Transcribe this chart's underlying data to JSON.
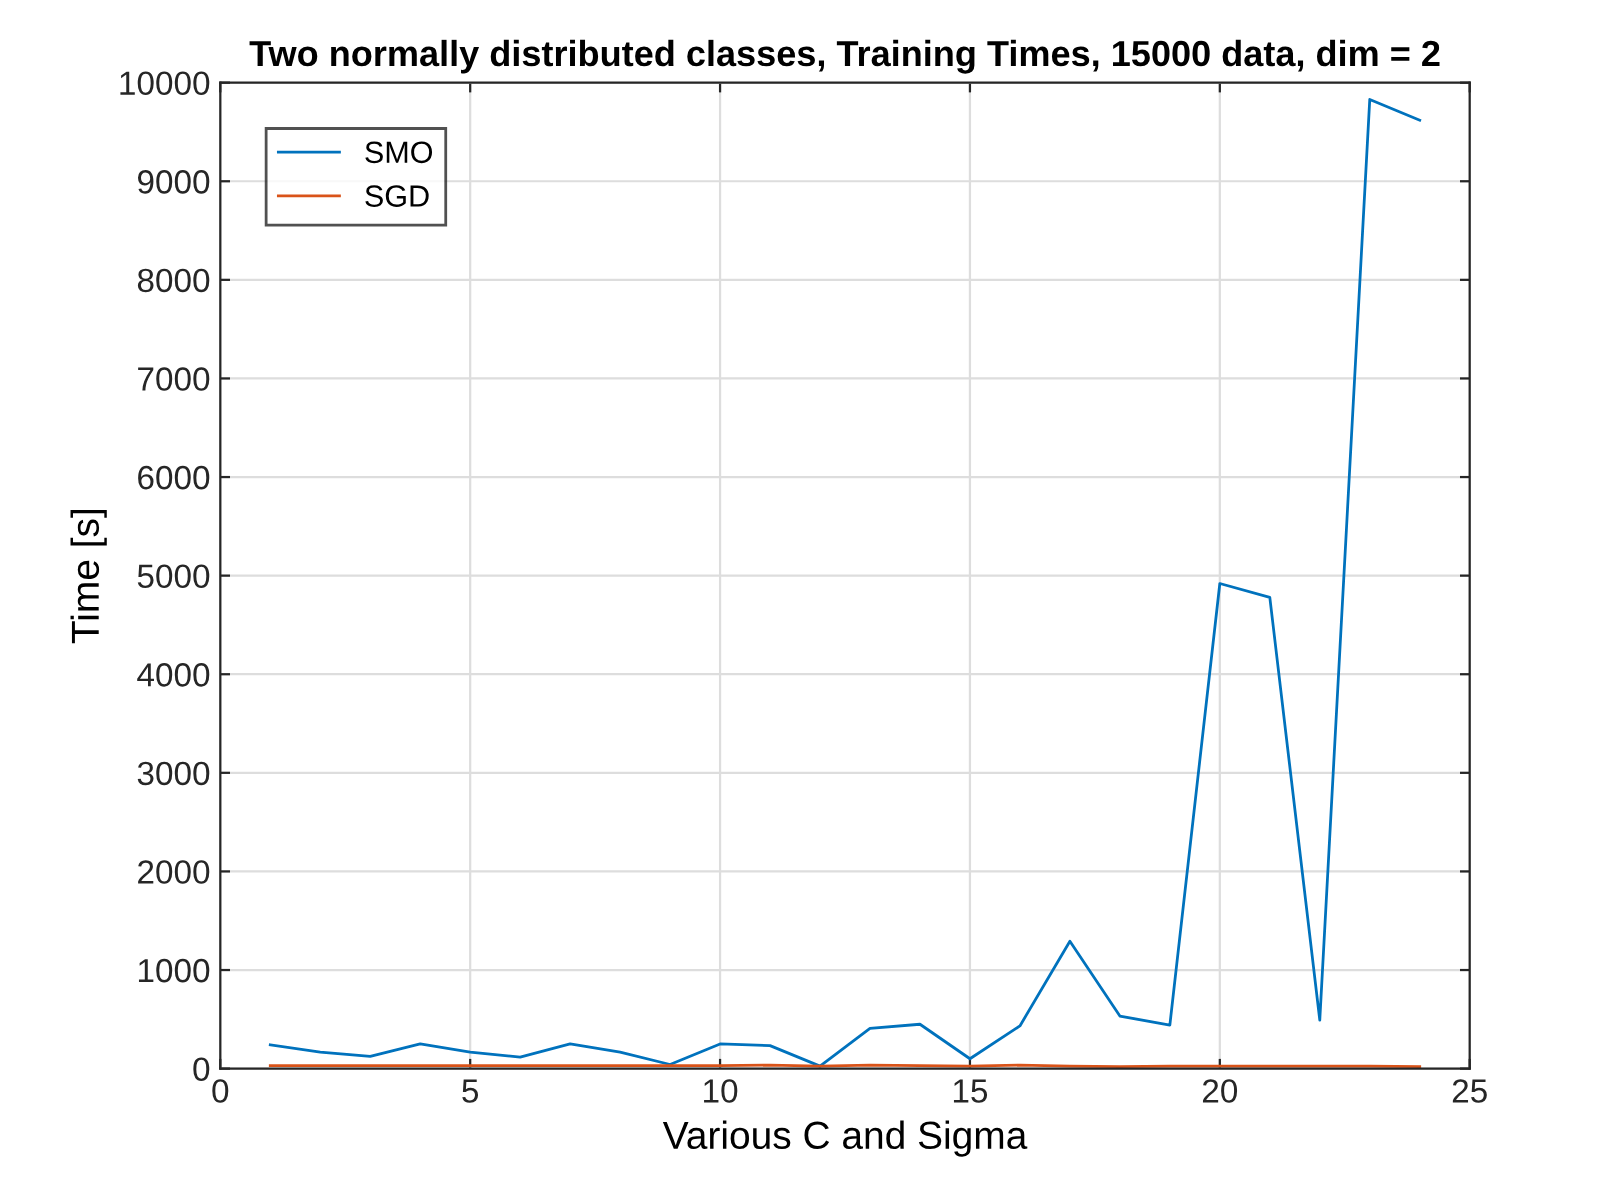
{
  "chart_data": {
    "type": "line",
    "title": "Two normally distributed classes, Training Times, 15000 data, dim = 2",
    "xlabel": "Various C and Sigma",
    "ylabel": "Time [s]",
    "x": [
      1,
      2,
      3,
      4,
      5,
      6,
      7,
      8,
      9,
      10,
      11,
      12,
      13,
      14,
      15,
      16,
      17,
      18,
      19,
      20,
      21,
      22,
      23,
      24
    ],
    "series": [
      {
        "name": "SMO",
        "color": "#0072bd",
        "values": [
          242,
          167,
          125,
          250,
          167,
          117,
          250,
          167,
          42,
          250,
          233,
          25,
          408,
          450,
          100,
          433,
          1292,
          533,
          442,
          4920,
          4780,
          492,
          9830,
          9620
        ]
      },
      {
        "name": "SGD",
        "color": "#d95319",
        "values": [
          30,
          30,
          30,
          30,
          30,
          30,
          30,
          30,
          30,
          30,
          35,
          25,
          35,
          30,
          25,
          35,
          25,
          20,
          25,
          25,
          25,
          25,
          25,
          20
        ]
      }
    ],
    "xlim": [
      0,
      25
    ],
    "xticks": [
      0,
      5,
      10,
      15,
      20,
      25
    ],
    "ylim": [
      0,
      10000
    ],
    "yticks": [
      0,
      1000,
      2000,
      3000,
      4000,
      5000,
      6000,
      7000,
      8000,
      9000,
      10000
    ],
    "grid": true,
    "legend": "top left"
  }
}
